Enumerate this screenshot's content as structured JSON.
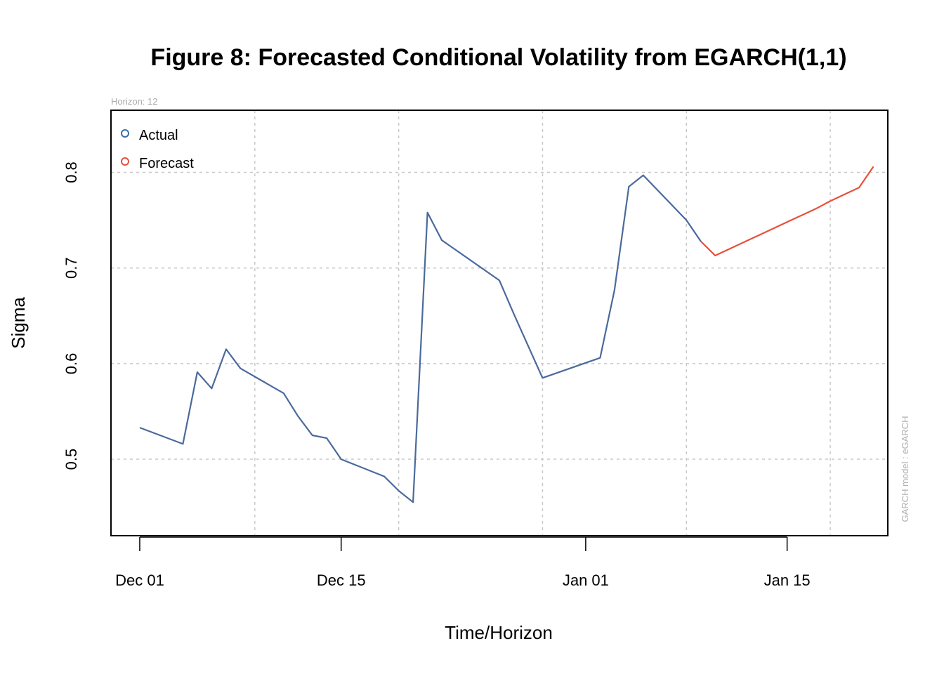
{
  "chart_data": {
    "type": "line",
    "title": "Figure 8: Forecasted Conditional Volatility from EGARCH(1,1)",
    "subtitle": "Horizon: 12",
    "xlabel": "Time/Horizon",
    "ylabel": "Sigma",
    "side_note": "GARCH model :  eGARCH",
    "xlim": [
      "2011-11-29",
      "2012-01-22"
    ],
    "ylim": [
      0.42,
      0.865
    ],
    "x_ticks": [
      {
        "date": "2011-12-01",
        "label": "Dec 01"
      },
      {
        "date": "2011-12-15",
        "label": "Dec 15"
      },
      {
        "date": "2012-01-01",
        "label": "Jan 01"
      },
      {
        "date": "2012-01-15",
        "label": "Jan 15"
      }
    ],
    "y_ticks": [
      0.5,
      0.6,
      0.7,
      0.8
    ],
    "grid": true,
    "grid_x_dates": [
      "2011-12-09",
      "2011-12-19",
      "2011-12-29",
      "2012-01-08",
      "2012-01-18"
    ],
    "legend_position": "top-left",
    "series": [
      {
        "name": "Actual",
        "color": "#4a6a9c",
        "legend_color": "#3a6ea8",
        "points": [
          {
            "x": "2011-12-01",
            "y": 0.533
          },
          {
            "x": "2011-12-04",
            "y": 0.516
          },
          {
            "x": "2011-12-05",
            "y": 0.591
          },
          {
            "x": "2011-12-06",
            "y": 0.574
          },
          {
            "x": "2011-12-07",
            "y": 0.615
          },
          {
            "x": "2011-12-08",
            "y": 0.595
          },
          {
            "x": "2011-12-11",
            "y": 0.569
          },
          {
            "x": "2011-12-12",
            "y": 0.545
          },
          {
            "x": "2011-12-13",
            "y": 0.525
          },
          {
            "x": "2011-12-14",
            "y": 0.522
          },
          {
            "x": "2011-12-15",
            "y": 0.5
          },
          {
            "x": "2011-12-18",
            "y": 0.482
          },
          {
            "x": "2011-12-19",
            "y": 0.467
          },
          {
            "x": "2011-12-20",
            "y": 0.455
          },
          {
            "x": "2011-12-21",
            "y": 0.758
          },
          {
            "x": "2011-12-22",
            "y": 0.729
          },
          {
            "x": "2011-12-26",
            "y": 0.687
          },
          {
            "x": "2011-12-27",
            "y": 0.652
          },
          {
            "x": "2011-12-29",
            "y": 0.585
          },
          {
            "x": "2012-01-02",
            "y": 0.606
          },
          {
            "x": "2012-01-03",
            "y": 0.677
          },
          {
            "x": "2012-01-04",
            "y": 0.785
          },
          {
            "x": "2012-01-05",
            "y": 0.797
          },
          {
            "x": "2012-01-08",
            "y": 0.75
          },
          {
            "x": "2012-01-09",
            "y": 0.728
          }
        ]
      },
      {
        "name": "Forecast",
        "color": "#e8503a",
        "legend_color": "#e8503a",
        "points": [
          {
            "x": "2012-01-09",
            "y": 0.728
          },
          {
            "x": "2012-01-10",
            "y": 0.713
          },
          {
            "x": "2012-01-11",
            "y": 0.72
          },
          {
            "x": "2012-01-12",
            "y": 0.727
          },
          {
            "x": "2012-01-13",
            "y": 0.734
          },
          {
            "x": "2012-01-14",
            "y": 0.741
          },
          {
            "x": "2012-01-15",
            "y": 0.748
          },
          {
            "x": "2012-01-16",
            "y": 0.755
          },
          {
            "x": "2012-01-17",
            "y": 0.762
          },
          {
            "x": "2012-01-18",
            "y": 0.77
          },
          {
            "x": "2012-01-19",
            "y": 0.777
          },
          {
            "x": "2012-01-20",
            "y": 0.784
          },
          {
            "x": "2012-01-21",
            "y": 0.806
          }
        ]
      }
    ]
  }
}
